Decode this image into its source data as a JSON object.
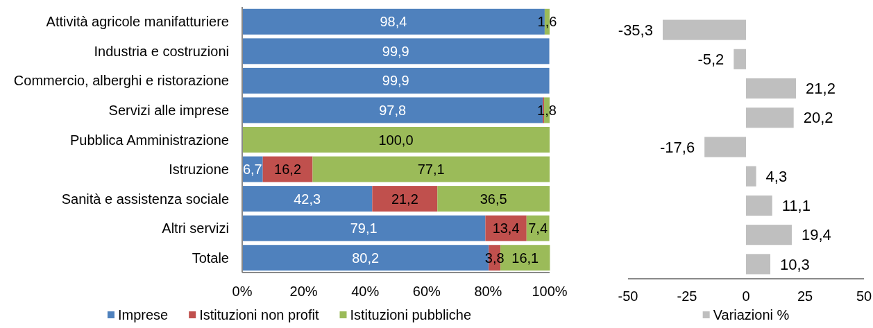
{
  "chart_data": [
    {
      "type": "bar",
      "orientation": "horizontal",
      "stacked": true,
      "categories": [
        "Attività agricole manifatturiere",
        "Industria e costruzioni",
        "Commercio, alberghi e ristorazione",
        "Servizi alle imprese",
        "Pubblica Amministrazione",
        "Istruzione",
        "Sanità e assistenza sociale",
        "Altri servizi",
        "Totale"
      ],
      "series": [
        {
          "name": "Imprese",
          "color": "#4f81bd",
          "values": [
            98.4,
            99.9,
            99.9,
            97.8,
            null,
            6.7,
            42.3,
            79.1,
            80.2
          ],
          "value_labels": [
            "98,4",
            "99,9",
            "99,9",
            "97,8",
            null,
            "6,7",
            "42,3",
            "79,1",
            "80,2"
          ]
        },
        {
          "name": "Istituzioni non profit",
          "color": "#c0504d",
          "values": [
            null,
            null,
            null,
            0.4,
            null,
            16.2,
            21.2,
            13.4,
            3.8
          ],
          "value_labels": [
            null,
            null,
            null,
            null,
            null,
            "16,2",
            "21,2",
            "13,4",
            "3,8"
          ]
        },
        {
          "name": "Istituzioni pubbliche",
          "color": "#9bbb59",
          "values": [
            1.6,
            null,
            null,
            1.8,
            100.0,
            77.1,
            36.5,
            7.4,
            16.1
          ],
          "value_labels": [
            "1,6",
            null,
            null,
            "1,8",
            "100,0",
            "77,1",
            "36,5",
            "7,4",
            "16,1"
          ]
        }
      ],
      "xlim": [
        0,
        100
      ],
      "xticks": [
        {
          "value": 0,
          "label": "0%"
        },
        {
          "value": 20,
          "label": "20%"
        },
        {
          "value": 40,
          "label": "40%"
        },
        {
          "value": 60,
          "label": "60%"
        },
        {
          "value": 80,
          "label": "80%"
        },
        {
          "value": 100,
          "label": "100%"
        }
      ],
      "legend": "bottom"
    },
    {
      "type": "bar",
      "orientation": "horizontal",
      "categories": [
        null,
        null,
        null,
        null,
        null,
        null,
        null,
        null,
        null
      ],
      "series": [
        {
          "name": "Variazioni %",
          "color": "#bfbfbf",
          "values": [
            -35.3,
            -5.2,
            21.2,
            20.2,
            -17.6,
            4.3,
            11.1,
            19.4,
            10.3
          ],
          "value_labels": [
            "-35,3",
            "-5,2",
            "21,2",
            "20,2",
            "-17,6",
            "4,3",
            "11,1",
            "19,4",
            "10,3"
          ]
        }
      ],
      "xlim": [
        -50,
        50
      ],
      "xticks": [
        -50,
        -25,
        0,
        25,
        50
      ],
      "legend": "bottom"
    }
  ]
}
